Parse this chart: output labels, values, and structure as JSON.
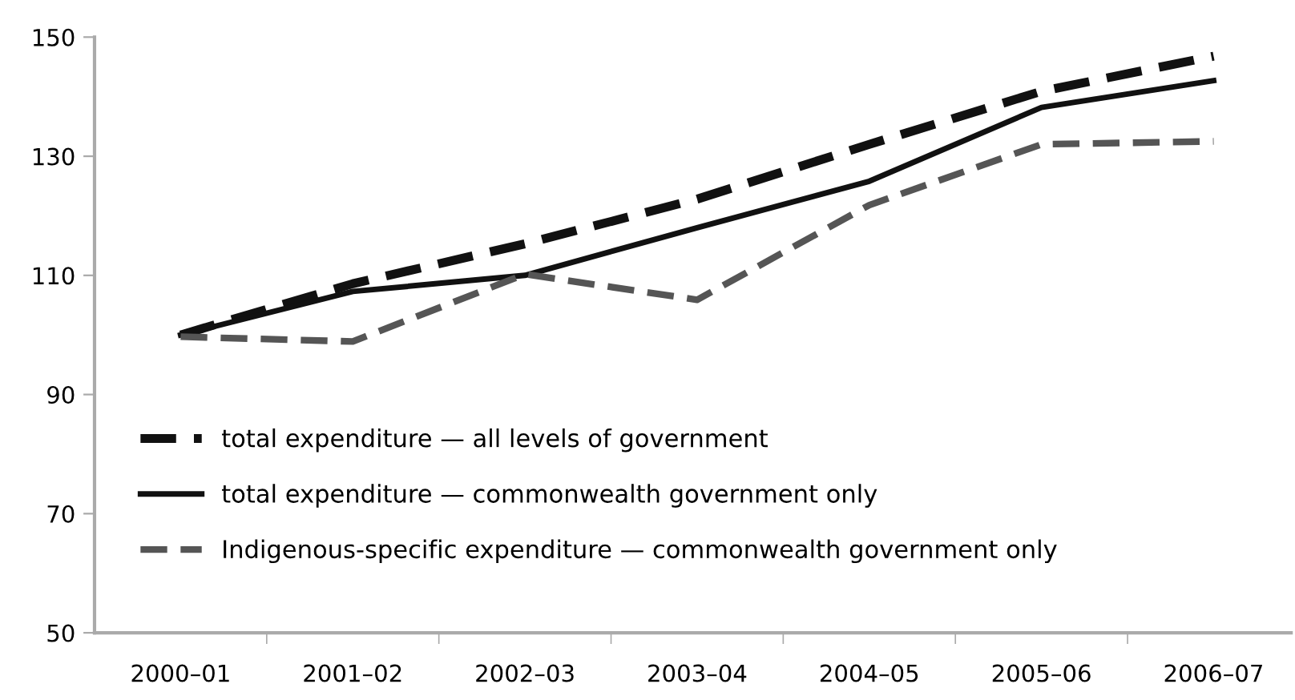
{
  "chart_data": {
    "type": "line",
    "categories": [
      "2000–01",
      "2001–02",
      "2002–03",
      "2003–04",
      "2004–05",
      "2005–06",
      "2006–07"
    ],
    "series": [
      {
        "name": "total expenditure — all levels of government",
        "color": "#111111",
        "line_style": "dashed",
        "values": [
          100,
          108.6,
          115.3,
          122.8,
          132,
          140.9,
          146.8
        ]
      },
      {
        "name": "total expenditure — commonwealth government only",
        "color": "#111111",
        "line_style": "solid",
        "values": [
          100,
          107.3,
          110,
          118,
          125.8,
          138.2,
          142.7
        ]
      },
      {
        "name": "Indigenous-specific expenditure — commonwealth government only",
        "color": "#555555",
        "line_style": "dashed",
        "values": [
          99.7,
          98.9,
          110.2,
          105.9,
          121.8,
          132,
          132.5
        ]
      }
    ],
    "ylim": [
      50,
      150
    ],
    "yticks": [
      50,
      70,
      90,
      110,
      130,
      150
    ],
    "grid": false,
    "legend": "bottom left",
    "marker": "none"
  }
}
